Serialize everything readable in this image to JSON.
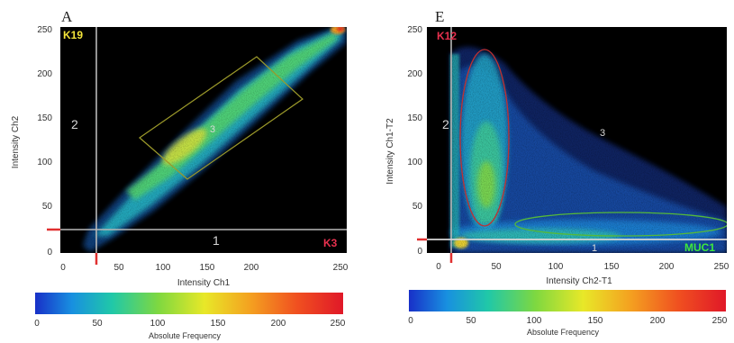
{
  "chart_data": [
    {
      "type": "heatmap",
      "panel_letter": "A",
      "xlabel": "Intensity Ch1",
      "ylabel": "Intensity Ch2",
      "xlim": [
        0,
        255
      ],
      "ylim": [
        0,
        255
      ],
      "x_ticks": [
        "0",
        "50",
        "100",
        "150",
        "200",
        "250"
      ],
      "y_ticks": [
        "0",
        "50",
        "100",
        "150",
        "200",
        "250"
      ],
      "threshold_x": 28,
      "threshold_y": 28,
      "marker_x": {
        "label": "K3",
        "color": "#e8304e"
      },
      "marker_y": {
        "label": "K19",
        "color": "#f4e53a"
      },
      "regions": [
        {
          "label": "1",
          "x": 135,
          "y": 15
        },
        {
          "label": "2",
          "x": 8,
          "y": 140
        },
        {
          "label": "3",
          "x": 135,
          "y": 133
        }
      ],
      "colorbar": {
        "label": "Absolute Frequency",
        "ticks": [
          "0",
          "50",
          "100",
          "150",
          "200",
          "250"
        ],
        "range": [
          0,
          255
        ]
      }
    },
    {
      "type": "heatmap",
      "panel_letter": "E",
      "xlabel": "Intensity Ch2-T1",
      "ylabel": "Intensity Ch1-T2",
      "xlim": [
        0,
        255
      ],
      "ylim": [
        0,
        255
      ],
      "x_ticks": [
        "0",
        "50",
        "100",
        "150",
        "200",
        "250"
      ],
      "y_ticks": [
        "0",
        "50",
        "100",
        "150",
        "200",
        "250"
      ],
      "threshold_x": 12,
      "threshold_y": 14,
      "marker_x": {
        "label": "MUC1",
        "color": "#3de83d"
      },
      "marker_y": {
        "label": "K12",
        "color": "#e8304e"
      },
      "regions": [
        {
          "label": "1",
          "x": 135,
          "y": 5
        },
        {
          "label": "2",
          "x": 3,
          "y": 140
        },
        {
          "label": "3",
          "x": 140,
          "y": 133
        }
      ],
      "colorbar": {
        "label": "Absolute Frequency",
        "ticks": [
          "0",
          "50",
          "100",
          "150",
          "200",
          "250"
        ],
        "range": [
          0,
          255
        ]
      }
    }
  ]
}
